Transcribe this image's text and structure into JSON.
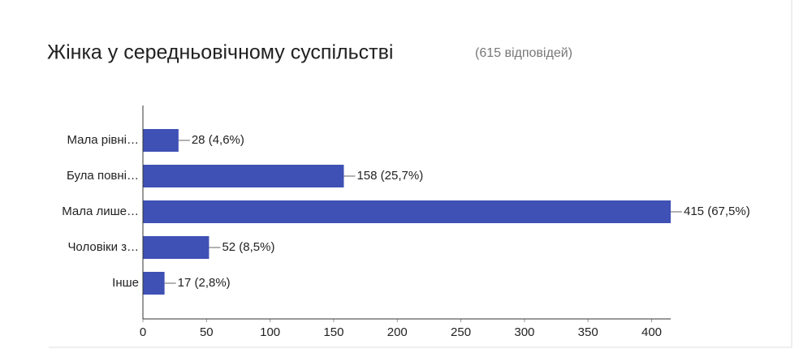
{
  "chart_data": {
    "type": "bar",
    "orientation": "horizontal",
    "title": "Жінка у середньовічному суспільстві",
    "subtitle": "(615 відповідей)",
    "categories": [
      "Мала рівні…",
      "Була повні…",
      "Мала лише…",
      "Чоловіки з…",
      "Інше"
    ],
    "values": [
      28,
      158,
      415,
      52,
      17
    ],
    "value_labels": [
      "28 (4,6%)",
      "158 (25,7%)",
      "415 (67,5%)",
      "52 (8,5%)",
      "17 (2,8%)"
    ],
    "color": "#3f51b5",
    "xlim": [
      0,
      415
    ],
    "xticks": [
      0,
      50,
      100,
      150,
      200,
      250,
      300,
      350,
      400
    ]
  }
}
